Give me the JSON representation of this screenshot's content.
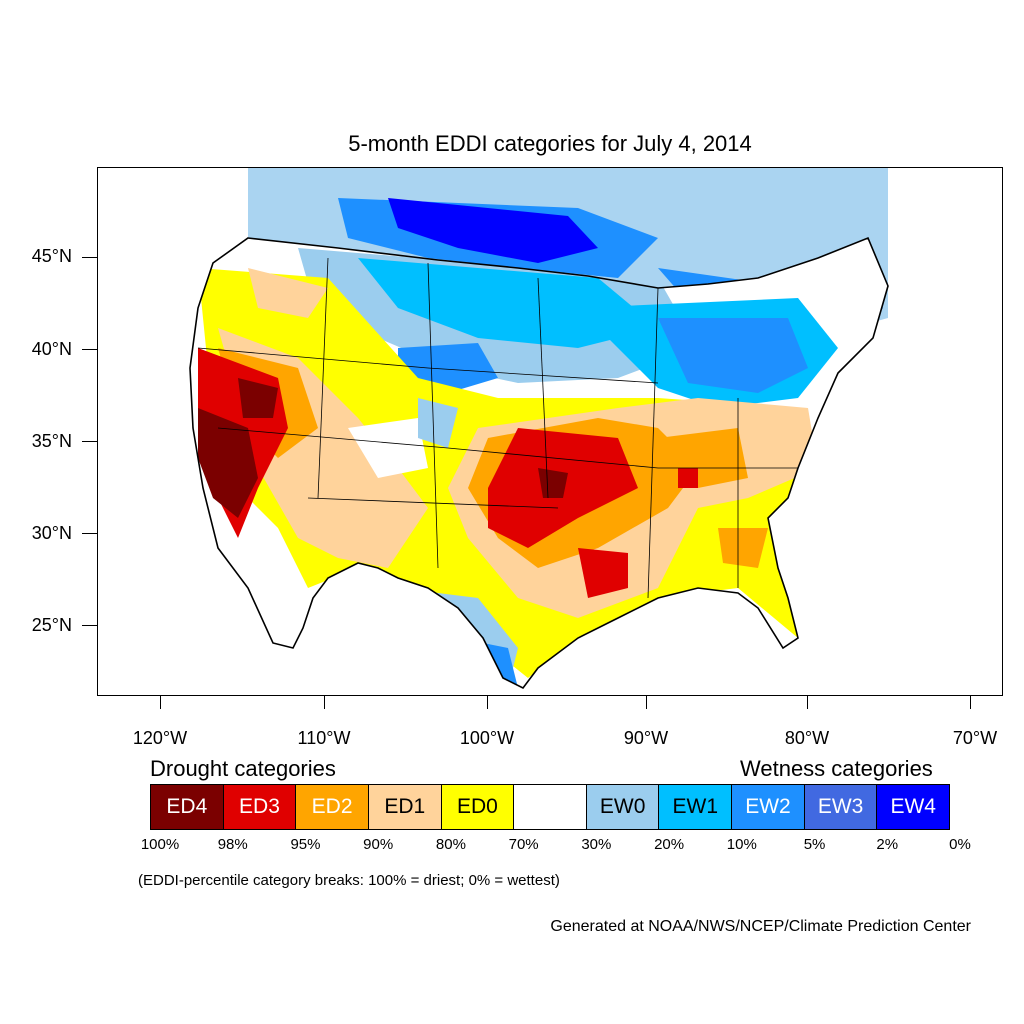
{
  "title": "5-month EDDI categories for July 4, 2014",
  "axes": {
    "lat_labels": [
      "45°N",
      "40°N",
      "35°N",
      "30°N",
      "25°N"
    ],
    "lon_labels": [
      "120°W",
      "110°W",
      "100°W",
      "90°W",
      "80°W",
      "70°W"
    ]
  },
  "legend": {
    "drought_heading": "Drought categories",
    "wetness_heading": "Wetness categories",
    "categories": [
      {
        "label": "ED4",
        "color": "#7b0000",
        "text_color": "#ffffff"
      },
      {
        "label": "ED3",
        "color": "#e00000",
        "text_color": "#ffffff"
      },
      {
        "label": "ED2",
        "color": "#ffa500",
        "text_color": "#ffffff"
      },
      {
        "label": "ED1",
        "color": "#ffd39b",
        "text_color": "#000000"
      },
      {
        "label": "ED0",
        "color": "#ffff00",
        "text_color": "#000000"
      },
      {
        "label": "",
        "color": "#ffffff",
        "text_color": "#000000"
      },
      {
        "label": "EW0",
        "color": "#9bcdee",
        "text_color": "#000000"
      },
      {
        "label": "EW1",
        "color": "#00bfff",
        "text_color": "#000000"
      },
      {
        "label": "EW2",
        "color": "#1e90ff",
        "text_color": "#ffffff"
      },
      {
        "label": "EW3",
        "color": "#4169e1",
        "text_color": "#ffffff"
      },
      {
        "label": "EW4",
        "color": "#0000ff",
        "text_color": "#ffffff"
      }
    ],
    "percentiles": [
      "100%",
      "98%",
      "95%",
      "90%",
      "80%",
      "70%",
      "30%",
      "20%",
      "10%",
      "5%",
      "2%",
      "0%"
    ],
    "note": "(EDDI-percentile category breaks: 100% = driest; 0% = wettest)"
  },
  "credit": "Generated at NOAA/NWS/NCEP/Climate Prediction Center"
}
